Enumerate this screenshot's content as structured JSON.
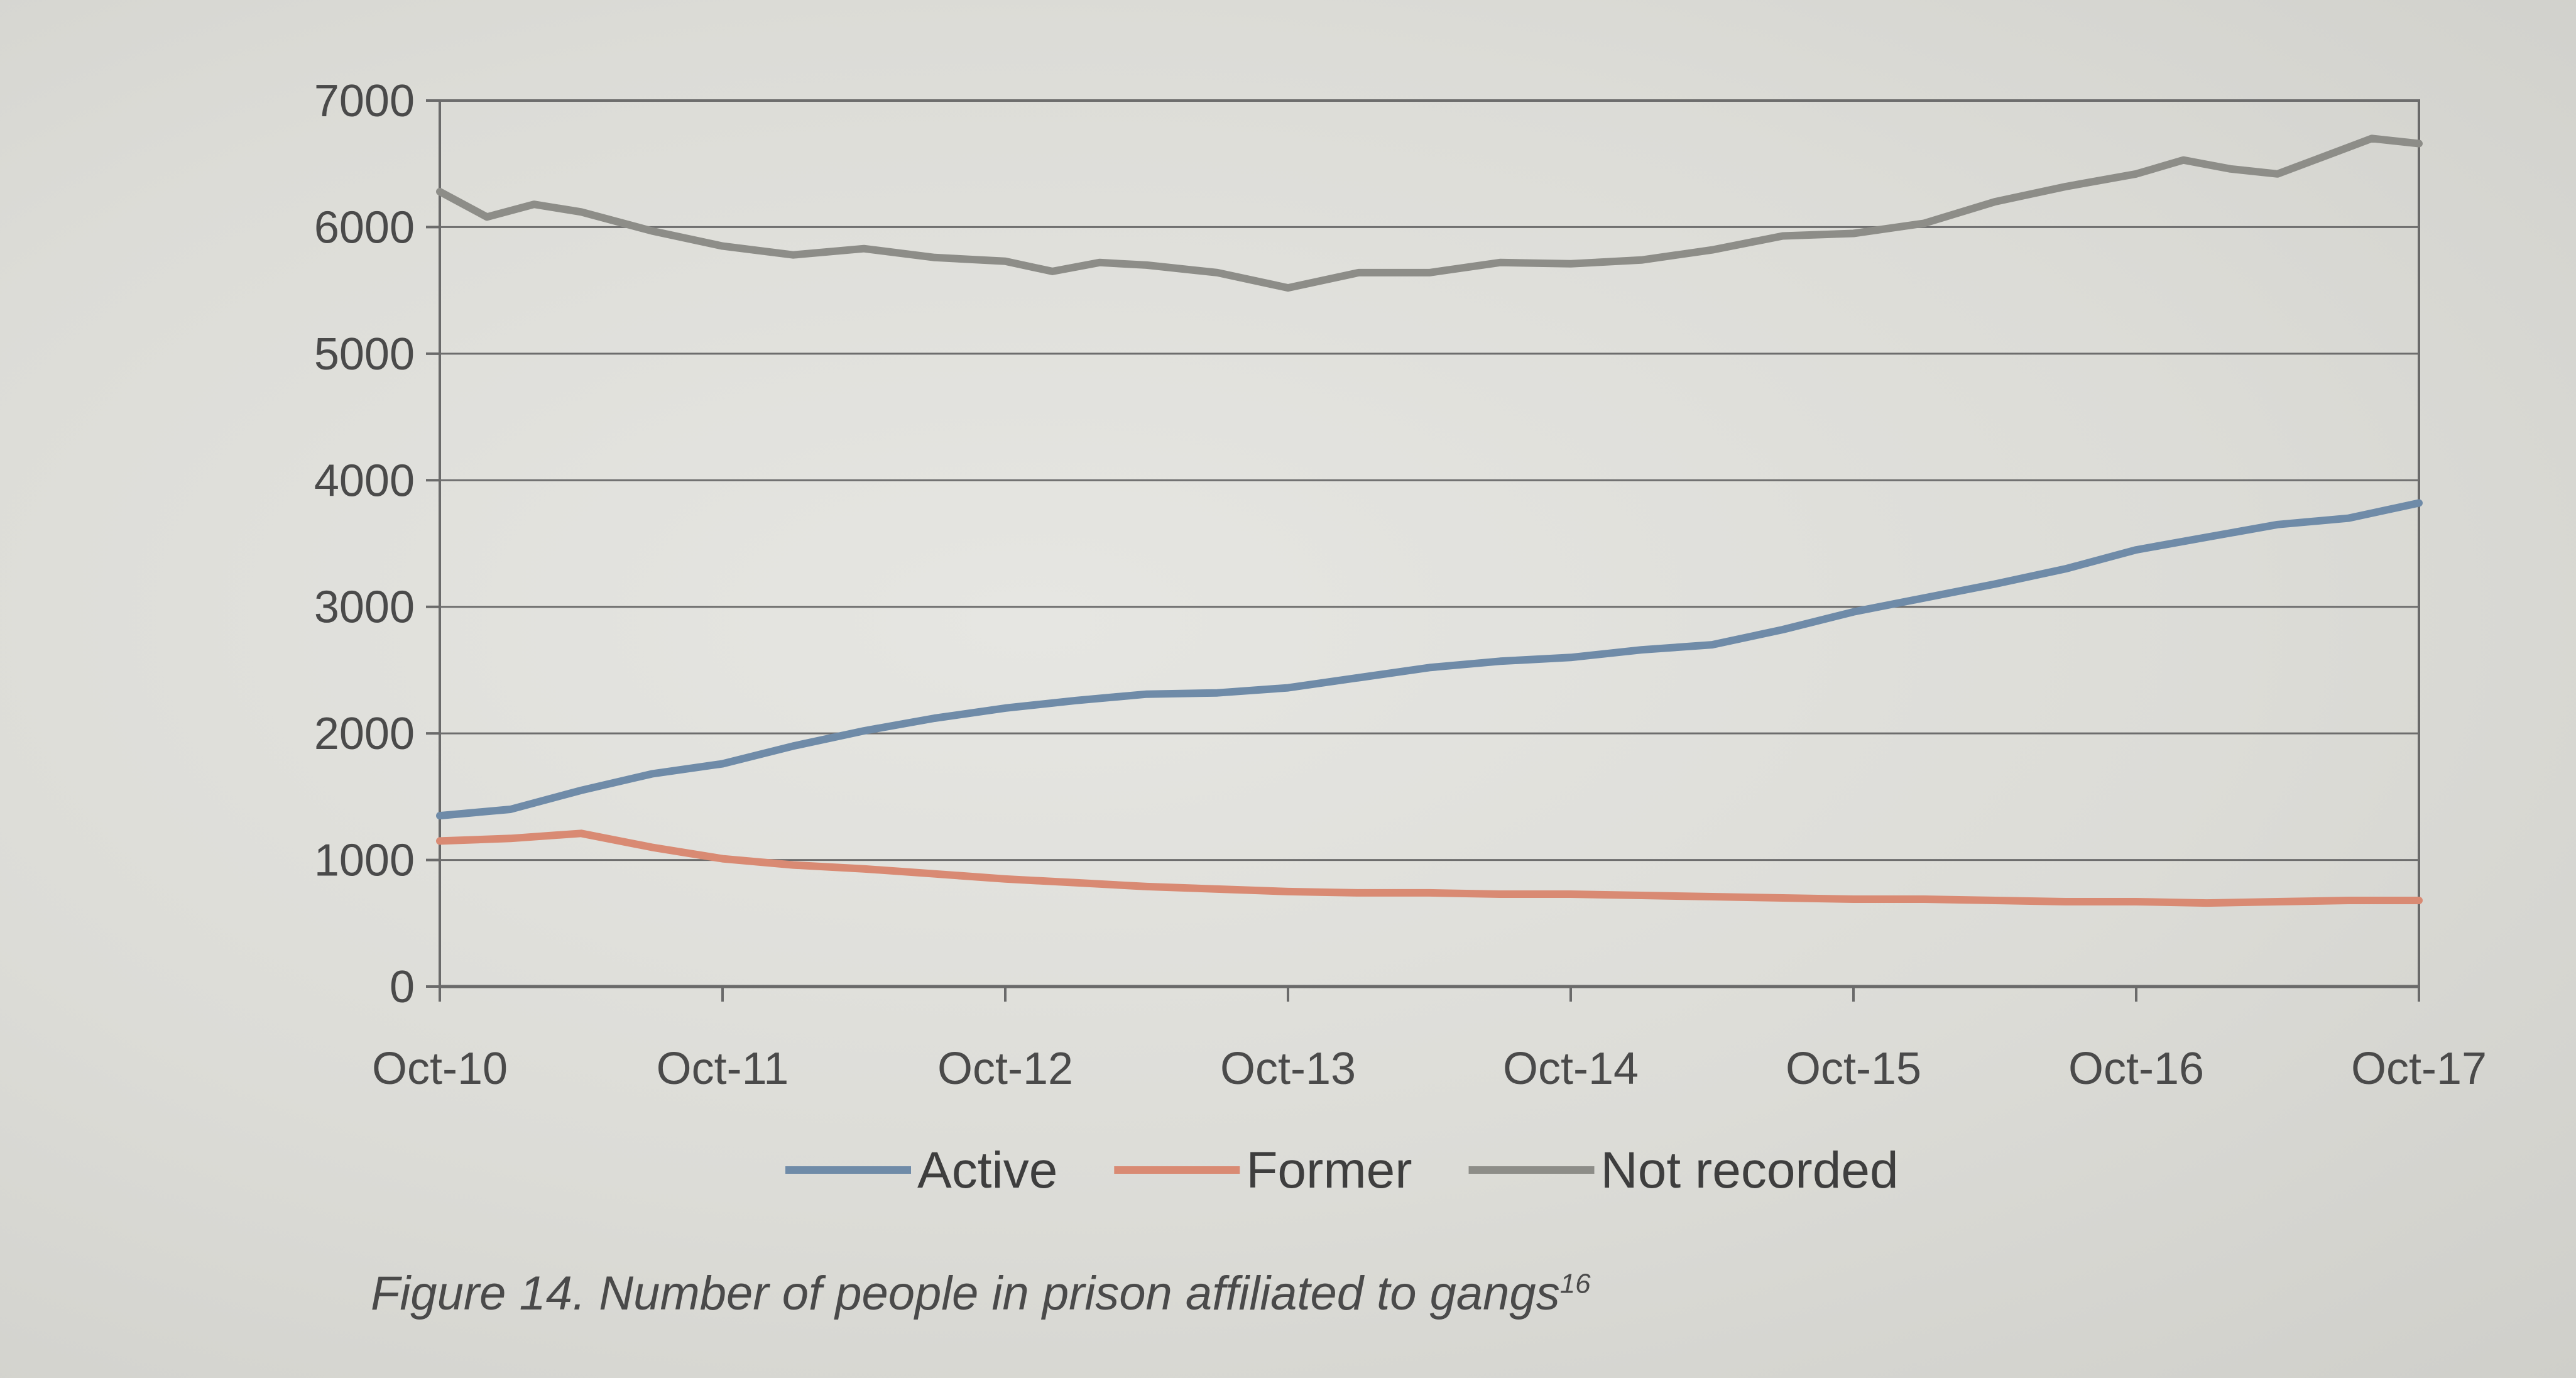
{
  "caption": {
    "text": "Figure 14. Number of people in prison affiliated to gangs",
    "footnote": "16"
  },
  "chart_data": {
    "type": "line",
    "title": "",
    "xlabel": "",
    "ylabel": "",
    "x_ticks": [
      "Oct-10",
      "Oct-11",
      "Oct-12",
      "Oct-13",
      "Oct-14",
      "Oct-15",
      "Oct-16",
      "Oct-17"
    ],
    "y_ticks": [
      0,
      1000,
      2000,
      3000,
      4000,
      5000,
      6000,
      7000
    ],
    "ylim": [
      0,
      7000
    ],
    "xlim": [
      "Oct-10",
      "Oct-17"
    ],
    "grid": true,
    "legend": "bottom",
    "series": [
      {
        "name": "Active",
        "color": "#6f8ba8",
        "points": [
          [
            "Oct-10",
            1350
          ],
          [
            "Jan-11",
            1400
          ],
          [
            "Apr-11",
            1550
          ],
          [
            "Jul-11",
            1680
          ],
          [
            "Oct-11",
            1760
          ],
          [
            "Jan-12",
            1900
          ],
          [
            "Apr-12",
            2020
          ],
          [
            "Jul-12",
            2120
          ],
          [
            "Oct-12",
            2200
          ],
          [
            "Jan-13",
            2260
          ],
          [
            "Apr-13",
            2310
          ],
          [
            "Jul-13",
            2320
          ],
          [
            "Oct-13",
            2360
          ],
          [
            "Jan-14",
            2440
          ],
          [
            "Apr-14",
            2520
          ],
          [
            "Jul-14",
            2570
          ],
          [
            "Oct-14",
            2600
          ],
          [
            "Jan-15",
            2660
          ],
          [
            "Apr-15",
            2700
          ],
          [
            "Jul-15",
            2820
          ],
          [
            "Oct-15",
            2960
          ],
          [
            "Jan-16",
            3070
          ],
          [
            "Apr-16",
            3180
          ],
          [
            "Jul-16",
            3300
          ],
          [
            "Oct-16",
            3450
          ],
          [
            "Jan-17",
            3550
          ],
          [
            "Apr-17",
            3650
          ],
          [
            "Jul-17",
            3700
          ],
          [
            "Oct-17",
            3820
          ]
        ]
      },
      {
        "name": "Former",
        "color": "#d98a73",
        "points": [
          [
            "Oct-10",
            1150
          ],
          [
            "Jan-11",
            1170
          ],
          [
            "Apr-11",
            1210
          ],
          [
            "Jul-11",
            1100
          ],
          [
            "Oct-11",
            1010
          ],
          [
            "Jan-12",
            960
          ],
          [
            "Apr-12",
            930
          ],
          [
            "Jul-12",
            890
          ],
          [
            "Oct-12",
            850
          ],
          [
            "Jan-13",
            820
          ],
          [
            "Apr-13",
            790
          ],
          [
            "Jul-13",
            770
          ],
          [
            "Oct-13",
            750
          ],
          [
            "Jan-14",
            740
          ],
          [
            "Apr-14",
            740
          ],
          [
            "Jul-14",
            730
          ],
          [
            "Oct-14",
            730
          ],
          [
            "Jan-15",
            720
          ],
          [
            "Apr-15",
            710
          ],
          [
            "Jul-15",
            700
          ],
          [
            "Oct-15",
            690
          ],
          [
            "Jan-16",
            690
          ],
          [
            "Apr-16",
            680
          ],
          [
            "Jul-16",
            670
          ],
          [
            "Oct-16",
            670
          ],
          [
            "Jan-17",
            660
          ],
          [
            "Apr-17",
            670
          ],
          [
            "Jul-17",
            680
          ],
          [
            "Oct-17",
            680
          ]
        ]
      },
      {
        "name": "Not recorded",
        "color": "#8d8d88",
        "points": [
          [
            "Oct-10",
            6280
          ],
          [
            "Dec-10",
            6080
          ],
          [
            "Feb-11",
            6180
          ],
          [
            "Apr-11",
            6120
          ],
          [
            "Jul-11",
            5970
          ],
          [
            "Oct-11",
            5850
          ],
          [
            "Jan-12",
            5780
          ],
          [
            "Apr-12",
            5830
          ],
          [
            "Jul-12",
            5760
          ],
          [
            "Oct-12",
            5730
          ],
          [
            "Dec-12",
            5650
          ],
          [
            "Feb-13",
            5720
          ],
          [
            "Apr-13",
            5700
          ],
          [
            "Jul-13",
            5640
          ],
          [
            "Oct-13",
            5520
          ],
          [
            "Jan-14",
            5640
          ],
          [
            "Apr-14",
            5640
          ],
          [
            "Jul-14",
            5720
          ],
          [
            "Oct-14",
            5710
          ],
          [
            "Jan-15",
            5740
          ],
          [
            "Apr-15",
            5820
          ],
          [
            "Jul-15",
            5930
          ],
          [
            "Oct-15",
            5950
          ],
          [
            "Jan-16",
            6030
          ],
          [
            "Apr-16",
            6200
          ],
          [
            "Jul-16",
            6320
          ],
          [
            "Oct-16",
            6420
          ],
          [
            "Dec-16",
            6530
          ],
          [
            "Feb-17",
            6460
          ],
          [
            "Apr-17",
            6420
          ],
          [
            "Jun-17",
            6560
          ],
          [
            "Aug-17",
            6700
          ],
          [
            "Oct-17",
            6660
          ]
        ]
      }
    ]
  }
}
